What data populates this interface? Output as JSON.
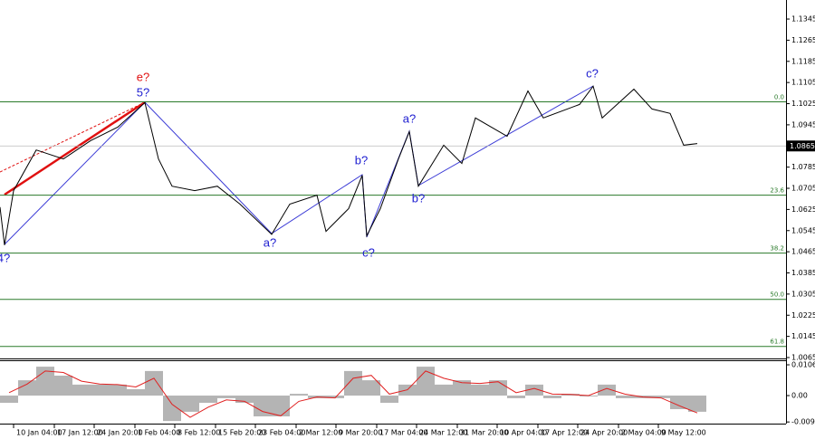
{
  "chart_data": [
    {
      "type": "line",
      "x": [
        0,
        5,
        15,
        40,
        70,
        100,
        130,
        160,
        175,
        190,
        215,
        240,
        265,
        300,
        320,
        350,
        360,
        385,
        400,
        405,
        420,
        440,
        452,
        462,
        490,
        510,
        525,
        560,
        583,
        600,
        640,
        655,
        665,
        700,
        720,
        740,
        755,
        770
      ],
      "values": [
        1.0634,
        1.049,
        1.0696,
        1.085,
        1.0816,
        1.0885,
        1.0936,
        1.1029,
        1.0816,
        1.0713,
        1.0696,
        1.0713,
        1.0645,
        1.0531,
        1.0645,
        1.0679,
        1.0542,
        1.0628,
        1.0754,
        1.0525,
        1.0628,
        1.0816,
        1.0919,
        1.0713,
        1.0868,
        1.0799,
        1.0971,
        1.0902,
        1.1073,
        1.0971,
        1.1022,
        1.1091,
        1.0971,
        1.108,
        1.1005,
        1.0988,
        1.0868,
        1.0874
      ],
      "color": "#000000",
      "xlim": [
        0,
        868
      ],
      "xticks": [
        {
          "value": -14,
          "label": "00"
        },
        {
          "value": 15,
          "label": "10 Jan 04:00"
        },
        {
          "value": 60,
          "label": "17 Jan 12:00"
        },
        {
          "value": 104,
          "label": "24 Jan 20:00"
        },
        {
          "value": 149,
          "label": "1 Feb 04:00"
        },
        {
          "value": 193,
          "label": "8 Feb 12:00"
        },
        {
          "value": 238,
          "label": "15 Feb 20:00"
        },
        {
          "value": 282,
          "label": "23 Feb 04:00"
        },
        {
          "value": 327,
          "label": "2 Mar 12:00"
        },
        {
          "value": 371,
          "label": "9 Mar 20:00"
        },
        {
          "value": 416,
          "label": "17 Mar 04:00"
        },
        {
          "value": 460,
          "label": "24 Mar 12:00"
        },
        {
          "value": 505,
          "label": "31 Mar 20:00"
        },
        {
          "value": 549,
          "label": "10 Apr 04:00"
        },
        {
          "value": 594,
          "label": "17 Apr 12:00"
        },
        {
          "value": 638,
          "label": "24 Apr 20:00"
        },
        {
          "value": 683,
          "label": "2 May 04:00"
        },
        {
          "value": 727,
          "label": "9 May 12:00"
        }
      ],
      "ylim": [
        1.0065,
        1.1417
      ],
      "yticks": [
        1.0065,
        1.0145,
        1.0225,
        1.0305,
        1.0385,
        1.0465,
        1.0545,
        1.0625,
        1.0705,
        1.0785,
        1.0945,
        1.1025,
        1.1105,
        1.1185,
        1.1265,
        1.1345
      ],
      "current_price": 1.0865,
      "fib_levels": [
        {
          "value": 1.1032,
          "label": "0.0"
        },
        {
          "value": 1.0679,
          "label": "23.6"
        },
        {
          "value": 1.046,
          "label": "38.2"
        },
        {
          "value": 1.0285,
          "label": "50.0"
        },
        {
          "value": 1.0107,
          "label": "61.8"
        }
      ],
      "fib_color": "#2a7a2a",
      "wave_labels": [
        "4?",
        "5?",
        "e?",
        "a?",
        "b?",
        "c?",
        "a?",
        "b?",
        "c?"
      ]
    },
    {
      "type": "oscillator",
      "x": [
        0,
        20,
        40,
        60,
        80,
        100,
        120,
        140,
        160,
        180,
        200,
        220,
        240,
        260,
        280,
        300,
        320,
        340,
        360,
        380,
        400,
        420,
        440,
        460,
        480,
        500,
        520,
        540,
        560,
        580,
        600,
        620,
        640,
        660,
        680,
        700,
        720,
        740,
        760
      ],
      "series": [
        {
          "color": "#b4b4b4",
          "values": [
            -0.0025,
            0.0053,
            0.01,
            0.0069,
            0.0038,
            0.0038,
            0.0038,
            0.0022,
            0.0085,
            -0.0088,
            -0.0056,
            -0.0025,
            -0.0009,
            -0.0025,
            -0.0072,
            -0.0072,
            0.0006,
            -0.0009,
            -0.0009,
            0.0085,
            0.0053,
            -0.0025,
            0.0038,
            0.01,
            0.0038,
            0.0053,
            0.0038,
            0.0053,
            -0.0009,
            0.0038,
            -0.0009,
            0.0006,
            -0.0003,
            0.0038,
            -0.0009,
            -0.0009,
            -0.0009,
            -0.0047,
            -0.0056
          ]
        },
        {
          "color": "#e02020",
          "values": [
            0.001,
            0.004,
            0.0085,
            0.008,
            0.005,
            0.004,
            0.0038,
            0.003,
            0.006,
            -0.003,
            -0.0075,
            -0.004,
            -0.0015,
            -0.002,
            -0.0055,
            -0.007,
            -0.002,
            -0.0005,
            -0.0008,
            0.006,
            0.007,
            0.0005,
            0.002,
            0.0085,
            0.006,
            0.0045,
            0.0042,
            0.0048,
            0.001,
            0.0025,
            0.0005,
            0.0004,
            0.0,
            0.0025,
            0.0005,
            -0.0005,
            -0.0008,
            -0.0035,
            -0.006
          ]
        }
      ],
      "ylim": [
        -0.0097,
        0.0116
      ],
      "yticks": [
        -0.00913,
        {
          "value": 0,
          "label": "0.00"
        },
        0.01065
      ]
    }
  ]
}
